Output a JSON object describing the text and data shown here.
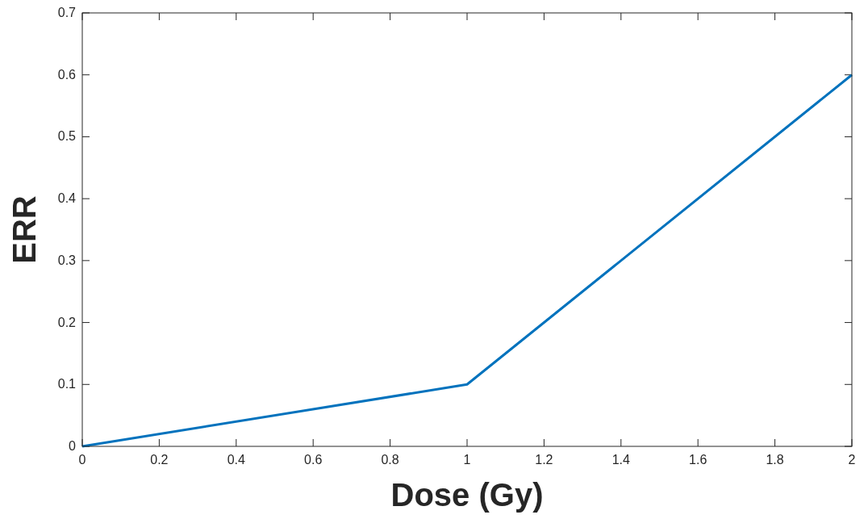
{
  "chart_data": {
    "type": "line",
    "xlabel": "Dose (Gy)",
    "ylabel": "ERR",
    "x": [
      0,
      1,
      2
    ],
    "series": [
      {
        "color": "#0072bd",
        "values": [
          0,
          0.1,
          0.6
        ]
      }
    ],
    "xlim": [
      0,
      2
    ],
    "xticks": [
      0,
      0.2,
      0.4,
      0.6,
      0.8,
      1,
      1.2,
      1.4,
      1.6,
      1.8,
      2
    ],
    "ylim": [
      0,
      0.7
    ],
    "yticks": [
      0,
      0.1,
      0.2,
      0.3,
      0.4,
      0.5,
      0.6,
      0.7
    ],
    "grid": false,
    "marker": "none",
    "line_style": "solid"
  }
}
